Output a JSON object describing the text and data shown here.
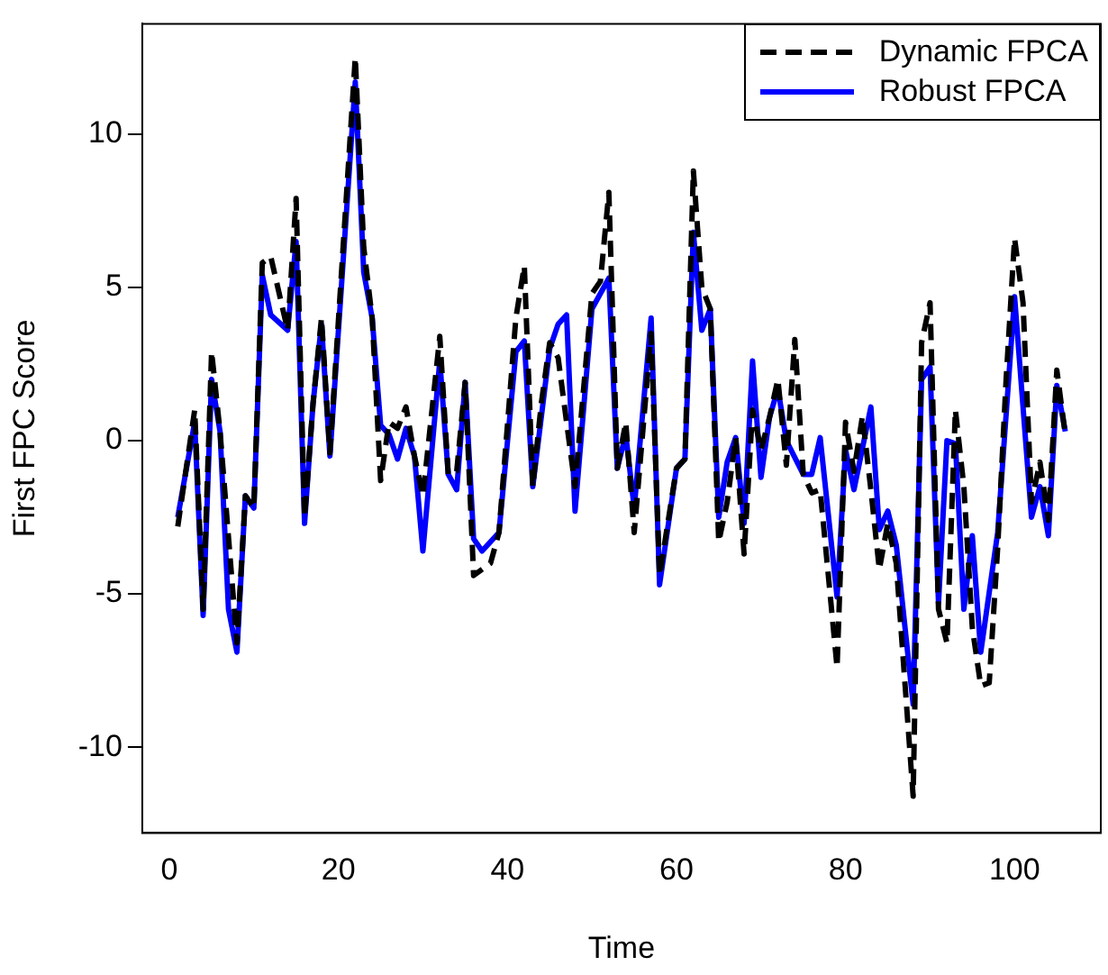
{
  "chart_data": {
    "type": "line",
    "xlabel": "Time",
    "ylabel": "First FPC Score",
    "xlim": [
      -3.2,
      110.2
    ],
    "ylim": [
      -12.8,
      13.6
    ],
    "xticks": [
      0,
      20,
      40,
      60,
      80,
      100
    ],
    "yticks": [
      -10,
      -5,
      0,
      5,
      10
    ],
    "grid": false,
    "legend": "top right",
    "marker": "none",
    "series": [
      {
        "name": "Dynamic FPCA",
        "color": "#000000",
        "line_style": "dashed",
        "x": [
          1,
          3,
          4,
          5,
          6,
          8,
          9,
          10,
          11,
          12,
          14,
          15,
          16,
          17,
          18,
          19,
          22,
          23,
          24,
          25,
          26,
          27,
          28,
          29,
          30,
          32,
          33,
          34,
          35,
          36,
          38,
          39,
          41,
          42,
          43,
          44,
          45,
          46,
          48,
          50,
          51,
          52,
          53,
          54,
          55,
          57,
          58,
          60,
          61,
          62,
          63,
          64,
          65,
          66,
          67,
          68,
          69,
          70,
          71,
          72,
          73,
          74,
          75,
          76,
          77,
          79,
          80,
          81,
          82,
          83,
          84,
          85,
          86,
          88,
          89,
          90,
          91,
          92,
          93,
          94,
          95,
          96,
          97,
          98,
          99,
          100,
          101,
          102,
          103,
          104,
          105,
          106
        ],
        "values": [
          -2.8,
          1.0,
          -5.5,
          2.9,
          0.3,
          -6.6,
          -1.8,
          -2.2,
          5.8,
          6.0,
          3.6,
          7.9,
          -2.5,
          1.2,
          4.0,
          -0.4,
          12.5,
          6.3,
          4.0,
          -1.3,
          0.6,
          0.4,
          1.1,
          -0.5,
          -1.8,
          3.4,
          -1.1,
          -1.0,
          1.9,
          -4.4,
          -4.0,
          -3.0,
          4.0,
          5.7,
          -1.5,
          1.2,
          3.2,
          2.7,
          -1.5,
          4.8,
          5.2,
          8.1,
          -0.9,
          0.6,
          -3.0,
          3.5,
          -4.4,
          -0.9,
          -0.6,
          8.8,
          5.0,
          4.3,
          -3.3,
          -2.0,
          0.1,
          -3.7,
          1.0,
          -0.3,
          0.75,
          2.0,
          -0.8,
          3.3,
          -1.1,
          -1.7,
          -1.6,
          -7.4,
          0.6,
          -1.0,
          0.8,
          -1.6,
          -4.2,
          -2.7,
          -4.0,
          -11.6,
          3.2,
          4.5,
          -5.5,
          -6.6,
          1.0,
          -1.5,
          -6.1,
          -8.0,
          -7.9,
          -3.5,
          2.0,
          6.6,
          4.5,
          -2.0,
          -0.7,
          -2.6,
          2.3,
          0.2
        ]
      },
      {
        "name": "Robust FPCA",
        "color": "#0000ff",
        "line_style": "solid",
        "x": [
          1,
          3,
          4,
          5,
          6,
          7,
          8,
          9,
          10,
          11,
          12,
          14,
          15,
          16,
          17,
          18,
          19,
          22,
          23,
          24,
          25,
          26,
          27,
          28,
          29,
          30,
          32,
          33,
          34,
          35,
          36,
          37,
          39,
          41,
          42,
          43,
          45,
          46,
          47,
          48,
          50,
          52,
          53,
          54,
          55,
          57,
          58,
          60,
          61,
          62,
          63,
          64,
          65,
          66,
          67,
          68,
          69,
          70,
          71,
          72,
          73,
          75,
          76,
          77,
          79,
          80,
          81,
          83,
          84,
          85,
          86,
          88,
          89,
          90,
          91,
          92,
          93,
          94,
          95,
          96,
          98,
          100,
          102,
          103,
          104,
          105,
          106
        ],
        "values": [
          -2.5,
          0.6,
          -5.7,
          2.0,
          0.3,
          -5.5,
          -6.9,
          -1.8,
          -2.2,
          5.4,
          4.1,
          3.6,
          6.5,
          -2.7,
          1.2,
          3.8,
          -0.5,
          11.7,
          5.5,
          4.0,
          0.5,
          0.2,
          -0.6,
          0.4,
          -0.5,
          -3.6,
          2.6,
          -1.1,
          -1.6,
          1.9,
          -3.2,
          -3.6,
          -3.0,
          2.9,
          3.25,
          -1.5,
          3.0,
          3.8,
          4.1,
          -2.3,
          4.3,
          5.3,
          -0.9,
          0.2,
          -2.2,
          4.0,
          -4.7,
          -0.9,
          -0.6,
          6.8,
          3.6,
          4.3,
          -2.5,
          -0.7,
          0.1,
          -2.7,
          2.6,
          -1.2,
          0.75,
          1.7,
          0.0,
          -1.1,
          -1.1,
          0.1,
          -5.1,
          -0.3,
          -1.6,
          1.1,
          -2.9,
          -2.3,
          -3.4,
          -8.6,
          2.0,
          2.4,
          -5.3,
          0.0,
          -0.1,
          -5.5,
          -3.1,
          -6.9,
          -3.0,
          4.7,
          -2.5,
          -1.5,
          -3.1,
          1.8,
          0.3
        ]
      }
    ]
  }
}
